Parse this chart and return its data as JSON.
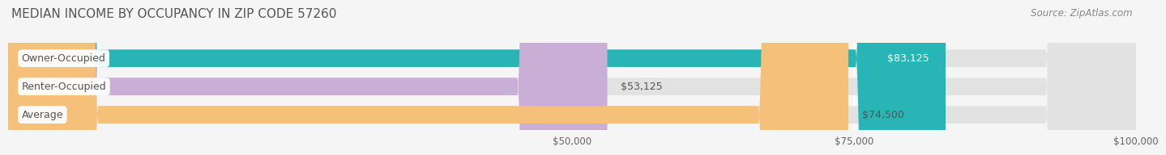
{
  "title": "MEDIAN INCOME BY OCCUPANCY IN ZIP CODE 57260",
  "source": "Source: ZipAtlas.com",
  "categories": [
    "Owner-Occupied",
    "Renter-Occupied",
    "Average"
  ],
  "values": [
    83125,
    53125,
    74500
  ],
  "bar_colors": [
    "#29b5b5",
    "#c9aed6",
    "#f5c07a"
  ],
  "bar_bg_color": "#e2e2e2",
  "label_texts": [
    "$83,125",
    "$53,125",
    "$74,500"
  ],
  "label_inside": [
    true,
    false,
    false
  ],
  "label_inside_color": "#ffffff",
  "label_outside_color": "#555555",
  "xlim": [
    0,
    100000
  ],
  "xticks": [
    50000,
    75000,
    100000
  ],
  "xtick_labels": [
    "$50,000",
    "$75,000",
    "$100,000"
  ],
  "bar_height": 0.62,
  "label_fontsize": 9,
  "title_fontsize": 11,
  "source_fontsize": 8.5,
  "category_fontsize": 9,
  "tick_fontsize": 8.5,
  "background_color": "#f5f5f5",
  "grid_color": "#ffffff",
  "category_text_color": "#555555"
}
